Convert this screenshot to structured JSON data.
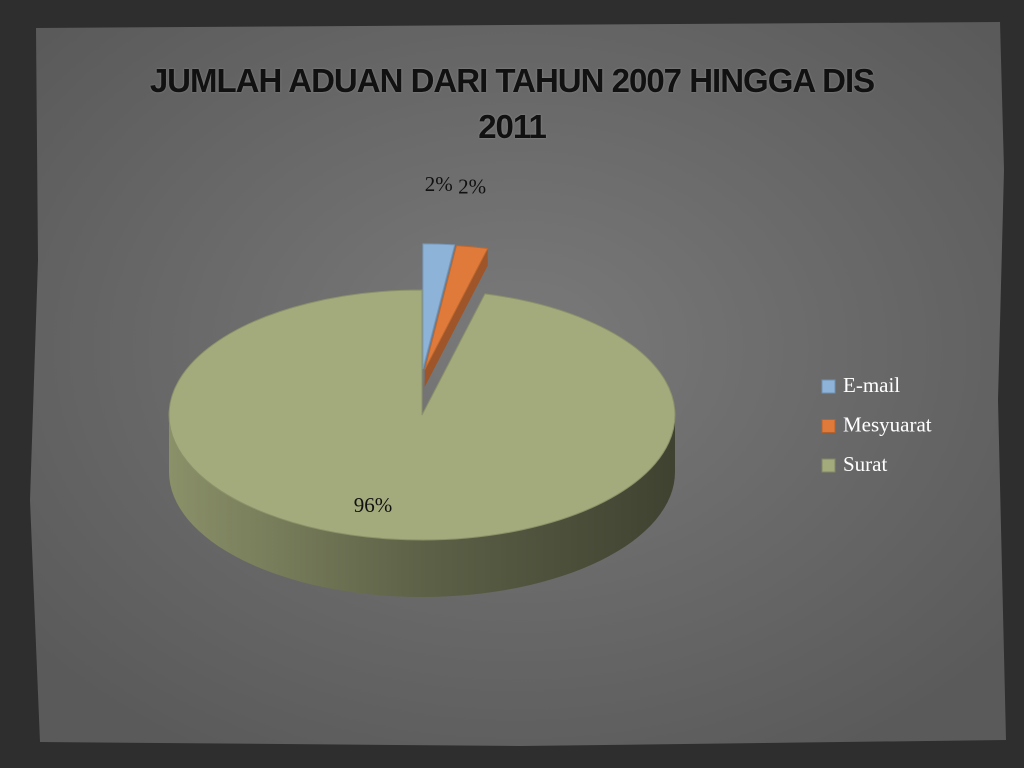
{
  "chart_data": {
    "type": "pie",
    "title": "JUMLAH ADUAN DARI TAHUN 2007 HINGGA DIS 2011",
    "categories": [
      "E-mail",
      "Mesyuarat",
      "Surat"
    ],
    "values": [
      2,
      2,
      96
    ],
    "value_labels": [
      "2%",
      "2%",
      "96%"
    ],
    "colors": [
      "#8db3d9",
      "#e07a3a",
      "#a3aa7c"
    ],
    "legend": "right"
  }
}
